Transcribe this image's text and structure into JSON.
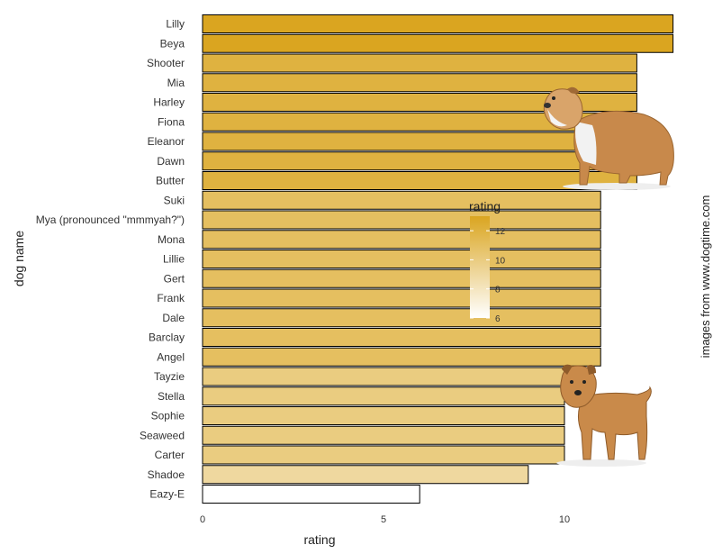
{
  "chart_data": {
    "type": "bar",
    "orientation": "horizontal",
    "xlabel": "rating",
    "ylabel": "dog name",
    "xlim": [
      0,
      13
    ],
    "x_ticks": [
      0,
      5,
      10
    ],
    "categories": [
      "Lilly",
      "Beya",
      "Shooter",
      "Mia",
      "Harley",
      "Fiona",
      "Eleanor",
      "Dawn",
      "Butter",
      "Suki",
      "Mya (pronounced \"mmmyah?\")",
      "Mona",
      "Lillie",
      "Gert",
      "Frank",
      "Dale",
      "Barclay",
      "Angel",
      "Tayzie",
      "Stella",
      "Sophie",
      "Seaweed",
      "Carter",
      "Shadoe",
      "Eazy-E"
    ],
    "values": [
      13,
      13,
      12,
      12,
      12,
      12,
      12,
      12,
      12,
      11,
      11,
      11,
      11,
      11,
      11,
      11,
      11,
      11,
      10,
      10,
      10,
      10,
      10,
      9,
      6
    ],
    "grid": false,
    "legend": {
      "title": "rating",
      "placement": "right",
      "ticks": [
        6,
        8,
        10,
        12
      ],
      "range": [
        6,
        13
      ],
      "color_low": "#ffffff",
      "color_high": "#DAA520"
    },
    "side_note": "images from www.dogtime.com"
  },
  "images": [
    "bulldog-image",
    "norfolk-terrier-image"
  ]
}
